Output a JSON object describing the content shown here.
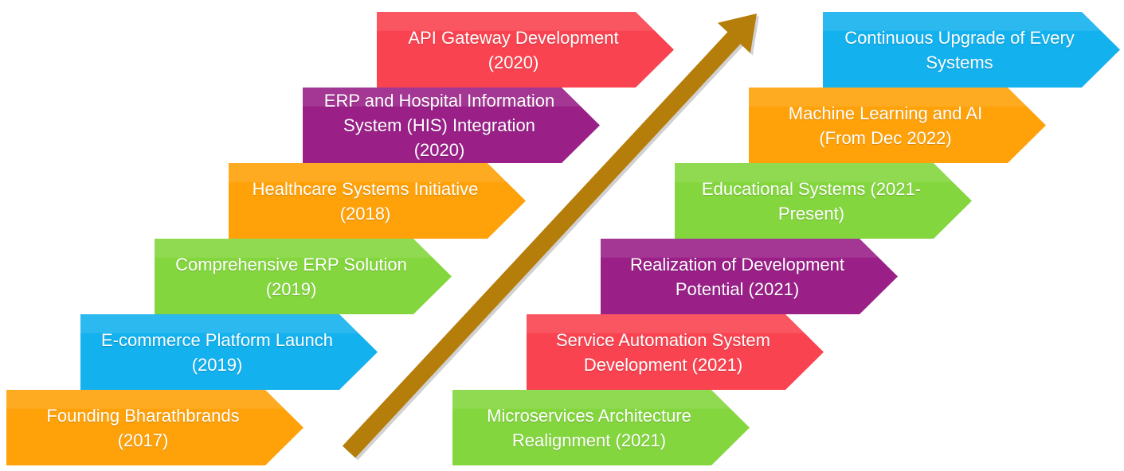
{
  "timeline": {
    "left_column": [
      {
        "text": "Founding Bharathbrands\n(2017)",
        "color": "#FFA20A"
      },
      {
        "text": "E-commerce Platform Launch\n(2019)",
        "color": "#13B1EE"
      },
      {
        "text": "Comprehensive ERP Solution\n(2019)",
        "color": "#84D63E"
      },
      {
        "text": "Healthcare Systems Initiative\n(2018)",
        "color": "#FFA20A"
      },
      {
        "text": "ERP and Hospital Information\nSystem (HIS) Integration\n(2020)",
        "color": "#9A2088"
      },
      {
        "text": "API Gateway Development\n(2020)",
        "color": "#F94350"
      }
    ],
    "right_column": [
      {
        "text": "Microservices Architecture\nRealignment (2021)",
        "color": "#84D63E"
      },
      {
        "text": "Service Automation System\nDevelopment (2021)",
        "color": "#F94350"
      },
      {
        "text": "Realization of Development\nPotential (2021)",
        "color": "#9A2088"
      },
      {
        "text": "Educational Systems (2021-\nPresent)",
        "color": "#84D63E"
      },
      {
        "text": "Machine Learning and AI\n(From Dec 2022)",
        "color": "#FFA20A"
      },
      {
        "text": "Continuous Upgrade of Every\nSystems",
        "color": "#13B1EE"
      }
    ]
  },
  "arrow": {
    "color": "#B57E0B"
  }
}
